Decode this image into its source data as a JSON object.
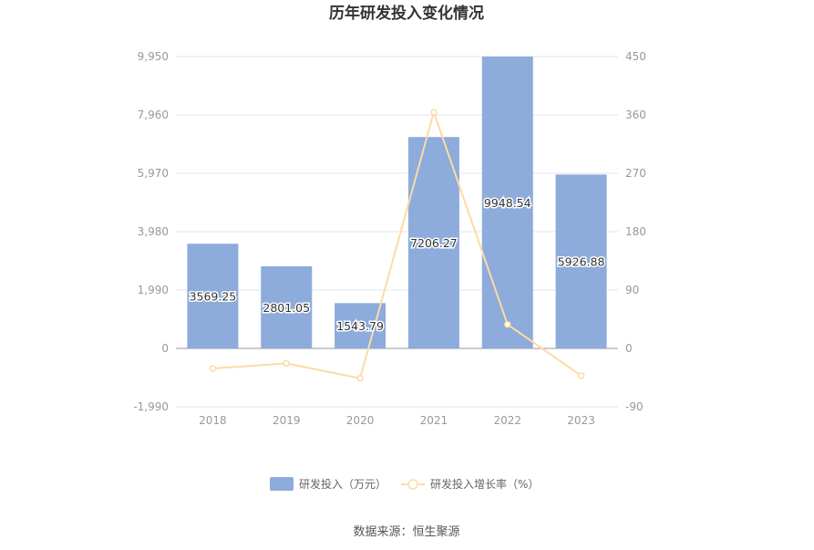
{
  "title": "历年研发投入变化情况",
  "source": "数据来源：恒生聚源",
  "colors": {
    "bar": "#8dabdb",
    "line": "#fddba5",
    "grid": "#e3e6ef",
    "axis": "#999999"
  },
  "chart_data": {
    "type": "bar",
    "categories": [
      "2018",
      "2019",
      "2020",
      "2021",
      "2022",
      "2023"
    ],
    "series": [
      {
        "name": "研发投入（万元）",
        "type": "bar",
        "axis": "left",
        "values": [
          3569.25,
          2801.05,
          1543.79,
          7206.27,
          9948.54,
          5926.88
        ],
        "labels": [
          "3569.25",
          "2801.05",
          "1543.79",
          "7206.27",
          "9948.54",
          "5926.88"
        ]
      },
      {
        "name": "研发投入增长率（%）",
        "type": "line",
        "axis": "right",
        "values": [
          -31,
          -23,
          -46,
          364,
          37,
          -42
        ]
      }
    ],
    "y_left": {
      "min": -1990,
      "max": 9950,
      "ticks": [
        -1990,
        0,
        1990,
        3980,
        5970,
        7960,
        9950
      ],
      "tick_labels": [
        "-1,990",
        "0",
        "1,990",
        "3,980",
        "5,970",
        "7,960",
        "9,950"
      ]
    },
    "y_right": {
      "min": -90,
      "max": 450,
      "ticks": [
        -90,
        0,
        90,
        180,
        270,
        360,
        450
      ],
      "tick_labels": [
        "-90",
        "0",
        "90",
        "180",
        "270",
        "360",
        "450"
      ]
    },
    "legend_position": "bottom",
    "grid": true
  }
}
